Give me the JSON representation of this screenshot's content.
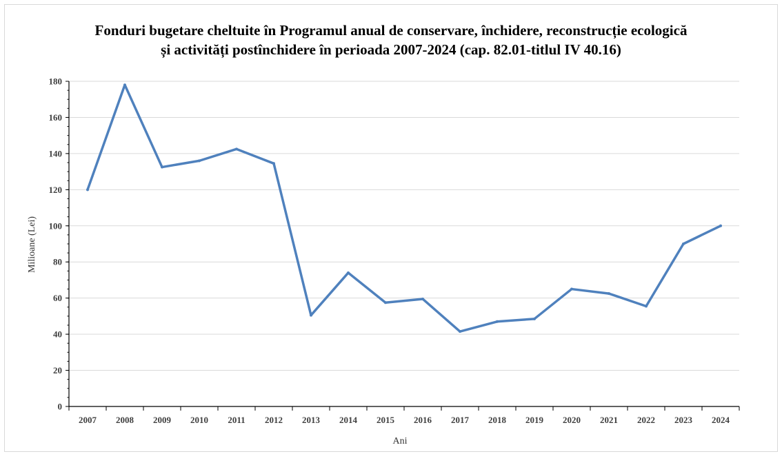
{
  "chart_data": {
    "type": "line",
    "title_lines": [
      "Fonduri bugetare cheltuite în Programul anual de conservare, închidere, reconstrucție ecologică",
      "și activități postînchidere în perioada 2007-2024 (cap. 82.01-titlul IV 40.16)"
    ],
    "xlabel": "Ani",
    "ylabel": "Milioane  (Lei)",
    "categories": [
      "2007",
      "2008",
      "2009",
      "2010",
      "2011",
      "2012",
      "2013",
      "2014",
      "2015",
      "2016",
      "2017",
      "2018",
      "2019",
      "2020",
      "2021",
      "2022",
      "2023",
      "2024"
    ],
    "series": [
      {
        "values": [
          120,
          178,
          132.5,
          136,
          142.5,
          134.5,
          50.5,
          74,
          57.5,
          59.5,
          41.5,
          47,
          48.5,
          65,
          62.5,
          55.5,
          90,
          100
        ]
      }
    ],
    "ylim": [
      0,
      180
    ],
    "yticks": [
      0,
      20,
      40,
      60,
      80,
      100,
      120,
      140,
      160,
      180
    ],
    "ytick_labels": [
      "0",
      "20",
      "40",
      "60",
      "80",
      "100",
      "120",
      "140",
      "160",
      "180"
    ],
    "grid": true,
    "legend": "none",
    "colors": {
      "line": "#4f81bd",
      "grid": "#d9d9d9",
      "axis": "#000000"
    }
  }
}
